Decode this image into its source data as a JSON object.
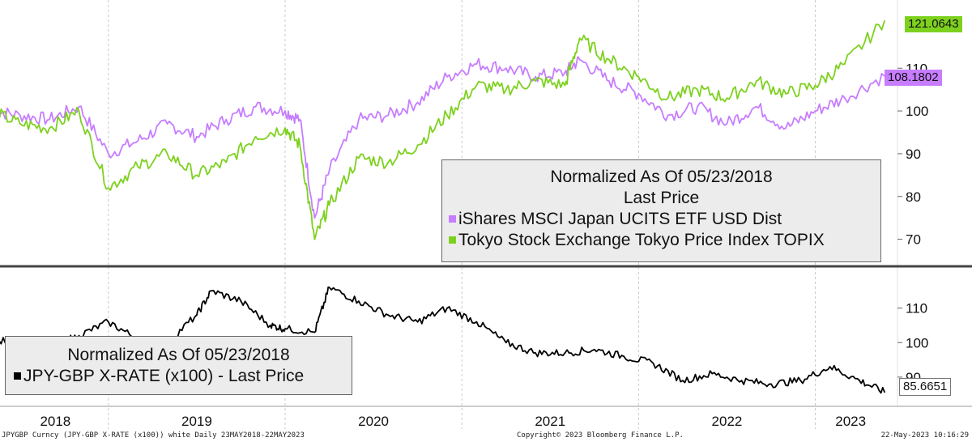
{
  "chart_data": [
    {
      "type": "line",
      "panel": "upper",
      "title": "Normalized As Of 05/23/2018",
      "subtitle": "Last Price",
      "ylim": [
        65,
        125
      ],
      "yticks": [
        70,
        80,
        90,
        100,
        110
      ],
      "ytick_labels": [
        "70",
        "80",
        "90",
        "100",
        "110"
      ],
      "x": [
        "2018-05",
        "2018-07",
        "2018-09",
        "2018-11",
        "2019-01",
        "2019-03",
        "2019-05",
        "2019-07",
        "2019-09",
        "2019-11",
        "2020-01",
        "2020-02",
        "2020-03",
        "2020-04",
        "2020-06",
        "2020-08",
        "2020-10",
        "2020-12",
        "2021-02",
        "2021-04",
        "2021-06",
        "2021-08",
        "2021-09",
        "2021-11",
        "2022-01",
        "2022-03",
        "2022-05",
        "2022-07",
        "2022-09",
        "2022-11",
        "2023-01",
        "2023-03",
        "2023-05"
      ],
      "series": [
        {
          "name": "iShares MSCI Japan UCITS ETF USD Dist",
          "color": "#c77dff",
          "last_value": "108.1802",
          "values": [
            100,
            99,
            98,
            101,
            90,
            93,
            97,
            94,
            98,
            101,
            100,
            98,
            75,
            86,
            98,
            99,
            102,
            108,
            111,
            110,
            108,
            109,
            112,
            107,
            104,
            99,
            101,
            97,
            101,
            96,
            100,
            103,
            108.18
          ]
        },
        {
          "name": "Tokyo Stock Exchange Tokyo Price Index TOPIX",
          "color": "#7dd11e",
          "last_value": "121.0643",
          "values": [
            100,
            97,
            96,
            100,
            82,
            87,
            90,
            85,
            88,
            94,
            96,
            92,
            70,
            78,
            89,
            88,
            92,
            99,
            106,
            105,
            107,
            106,
            117,
            112,
            108,
            103,
            105,
            103,
            107,
            104,
            106,
            111,
            121.06
          ]
        }
      ]
    },
    {
      "type": "line",
      "panel": "lower",
      "title": "Normalized As Of 05/23/2018",
      "ylim": [
        82,
        120
      ],
      "yticks": [
        90,
        100,
        110
      ],
      "ytick_labels": [
        "90",
        "100",
        "110"
      ],
      "x": [
        "2018-05",
        "2018-07",
        "2018-09",
        "2018-11",
        "2019-01",
        "2019-03",
        "2019-05",
        "2019-07",
        "2019-08",
        "2019-10",
        "2019-12",
        "2020-01",
        "2020-03",
        "2020-04",
        "2020-06",
        "2020-08",
        "2020-10",
        "2020-12",
        "2021-02",
        "2021-04",
        "2021-06",
        "2021-08",
        "2021-10",
        "2021-12",
        "2022-02",
        "2022-04",
        "2022-06",
        "2022-08",
        "2022-10",
        "2022-12",
        "2023-02",
        "2023-04",
        "2023-05"
      ],
      "series": [
        {
          "name": "JPY-GBP X-RATE (x100) - Last Price",
          "color": "#000000",
          "last_value": "85.6651",
          "values": [
            100,
            101,
            99,
            102,
            106,
            101,
            100,
            108,
            115,
            112,
            105,
            104,
            103,
            116,
            112,
            108,
            106,
            110,
            106,
            100,
            97,
            97,
            98,
            96,
            94,
            89,
            91,
            89,
            88,
            89,
            93,
            89,
            85.67
          ]
        }
      ]
    }
  ],
  "x_axis": {
    "labels": [
      "2018",
      "2019",
      "2020",
      "2021",
      "2022",
      "2023"
    ]
  },
  "legends": {
    "upper": {
      "line1": "Normalized As Of 05/23/2018",
      "line2": "Last Price",
      "item1": "iShares MSCI Japan UCITS ETF USD Dist",
      "item2": "Tokyo Stock Exchange Tokyo Price Index TOPIX"
    },
    "lower": {
      "line1": "Normalized As Of 05/23/2018",
      "item1": "JPY-GBP X-RATE (x100) - Last Price"
    }
  },
  "last_tags": {
    "topix": "121.0643",
    "ishares": "108.1802",
    "jpygbp": "85.6651"
  },
  "footer": {
    "left": "JPYGBP Curncy (JPY-GBP X-RATE (x100)) white  Daily 23MAY2018-22MAY2023",
    "center": "Copyright© 2023 Bloomberg Finance L.P.",
    "right": "22-May-2023 10:16:29"
  },
  "colors": {
    "ishares": "#c77dff",
    "topix": "#7dd11e",
    "fx": "#000000",
    "divider": "#444444"
  }
}
